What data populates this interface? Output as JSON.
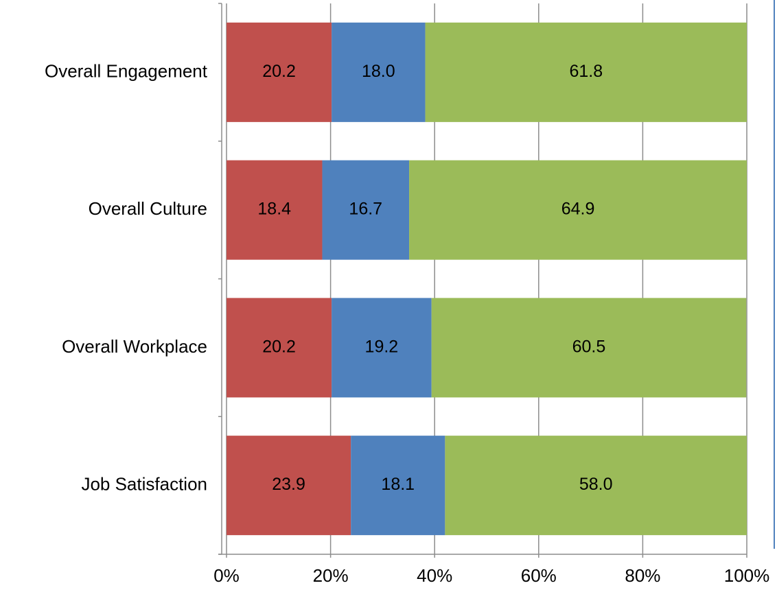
{
  "chart_data": {
    "type": "stacked_barh",
    "categories": [
      "Overall Engagement",
      "Overall Culture",
      "Overall Workplace",
      "Job Satisfaction"
    ],
    "series": [
      {
        "color": "#c0504d",
        "values": [
          20.2,
          18.4,
          20.2,
          23.9
        ],
        "value_labels": [
          "20.2",
          "18.4",
          "20.2",
          "23.9"
        ]
      },
      {
        "color": "#4f81bd",
        "values": [
          18.0,
          16.7,
          19.2,
          18.1
        ],
        "value_labels": [
          "18.0",
          "16.7",
          "19.2",
          "18.1"
        ]
      },
      {
        "color": "#9bbb59",
        "values": [
          61.8,
          64.9,
          60.5,
          58.0
        ],
        "value_labels": [
          "61.8",
          "64.9",
          "60.5",
          "58.0"
        ]
      }
    ],
    "xlim": [
      0,
      100
    ],
    "xticks": [
      {
        "value": 0,
        "label": "0%"
      },
      {
        "value": 20,
        "label": "20%"
      },
      {
        "value": 40,
        "label": "40%"
      },
      {
        "value": 60,
        "label": "60%"
      },
      {
        "value": 80,
        "label": "80%"
      },
      {
        "value": 100,
        "label": "100%"
      }
    ],
    "grid": true
  }
}
